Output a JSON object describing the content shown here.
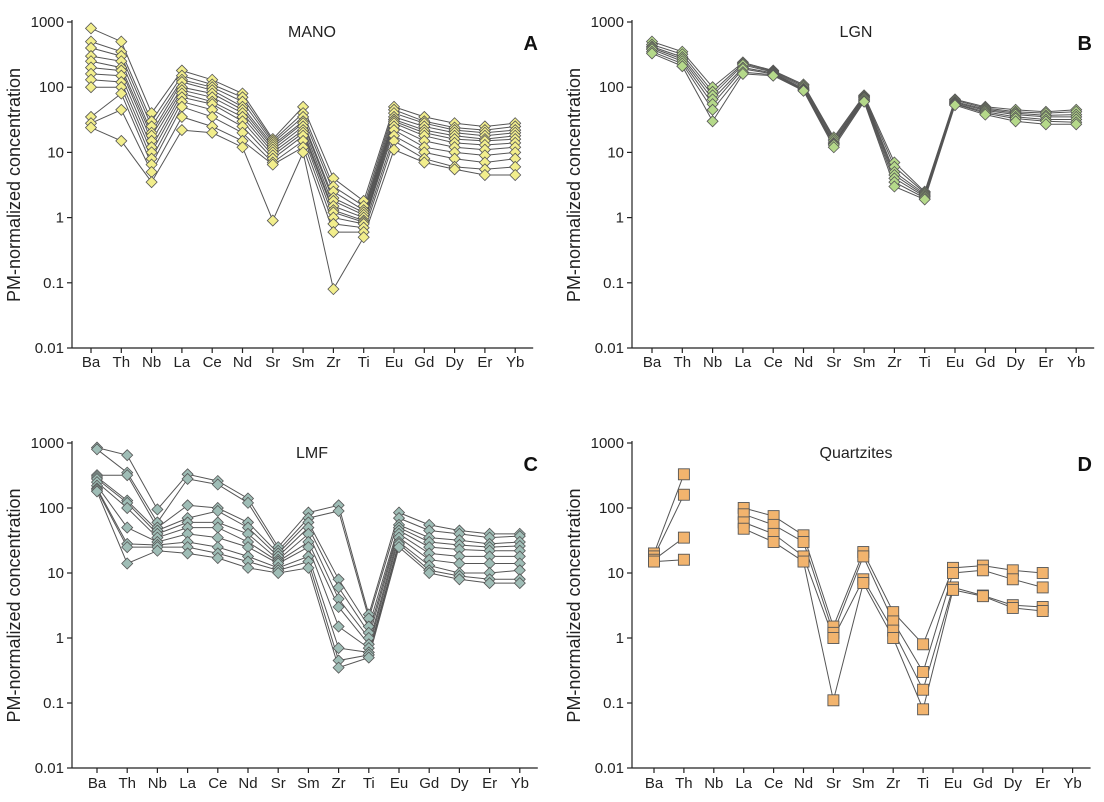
{
  "figure": {
    "element_list": [
      "Ba",
      "Th",
      "Nb",
      "La",
      "Ce",
      "Nd",
      "Sr",
      "Sm",
      "Zr",
      "Ti",
      "Eu",
      "Gd",
      "Dy",
      "Er",
      "Yb"
    ],
    "y_tick_labels": [
      "0.01",
      "0.1",
      "1",
      "10",
      "100",
      "1000"
    ]
  },
  "chart_data": [
    {
      "type": "line",
      "panel_letter": "A",
      "title": "MANO",
      "ylabel": "PM-normalized concentration",
      "xlabel": "",
      "yscale": "log",
      "ylim": [
        0.01,
        1000
      ],
      "grid": false,
      "marker": "diamond",
      "marker_color": "#f2ee8c",
      "categories": [
        "Ba",
        "Th",
        "Nb",
        "La",
        "Ce",
        "Nd",
        "Sr",
        "Sm",
        "Zr",
        "Ti",
        "Eu",
        "Gd",
        "Dy",
        "Er",
        "Yb"
      ],
      "series": [
        {
          "values": [
            800,
            500,
            40,
            180,
            130,
            80,
            16,
            50,
            4,
            1.8,
            50,
            35,
            28,
            25,
            28
          ]
        },
        {
          "values": [
            500,
            350,
            30,
            150,
            110,
            70,
            15,
            40,
            3,
            1.5,
            45,
            30,
            24,
            22,
            25
          ]
        },
        {
          "values": [
            400,
            300,
            25,
            130,
            100,
            60,
            14,
            35,
            2.5,
            1.3,
            40,
            28,
            22,
            20,
            22
          ]
        },
        {
          "values": [
            300,
            250,
            20,
            120,
            90,
            50,
            13,
            30,
            2,
            1.2,
            35,
            25,
            20,
            18,
            20
          ]
        },
        {
          "values": [
            250,
            200,
            18,
            100,
            80,
            45,
            12,
            28,
            1.8,
            1.1,
            32,
            22,
            18,
            16,
            18
          ]
        },
        {
          "values": [
            200,
            180,
            15,
            90,
            70,
            40,
            11,
            25,
            1.5,
            1,
            30,
            20,
            16,
            15,
            16
          ]
        },
        {
          "values": [
            160,
            150,
            12,
            80,
            60,
            35,
            10,
            22,
            1.3,
            0.9,
            28,
            18,
            14,
            13,
            14
          ]
        },
        {
          "values": [
            130,
            120,
            10,
            70,
            55,
            30,
            9,
            20,
            1.2,
            0.85,
            25,
            15,
            12,
            11,
            12
          ]
        },
        {
          "values": [
            100,
            100,
            8,
            60,
            45,
            25,
            8,
            18,
            1,
            0.8,
            22,
            12,
            10,
            9,
            10
          ]
        },
        {
          "values": [
            35,
            80,
            6.5,
            50,
            35,
            20,
            7,
            15,
            0.8,
            0.7,
            18,
            10,
            8,
            7,
            8
          ]
        },
        {
          "values": [
            28,
            45,
            5,
            35,
            25,
            15,
            6.5,
            12,
            0.6,
            0.6,
            15,
            8,
            6,
            5.5,
            6
          ]
        },
        {
          "values": [
            24,
            15,
            3.5,
            22,
            20,
            12,
            0.9,
            10,
            0.08,
            0.5,
            11,
            7,
            5.5,
            4.5,
            4.5
          ]
        }
      ]
    },
    {
      "type": "line",
      "panel_letter": "B",
      "title": "LGN",
      "ylabel": "PM-normalized concentration",
      "xlabel": "",
      "yscale": "log",
      "ylim": [
        0.01,
        1000
      ],
      "grid": false,
      "marker": "diamond",
      "marker_color": "#b5d98a",
      "categories": [
        "Ba",
        "Th",
        "Nb",
        "La",
        "Ce",
        "Nd",
        "Sr",
        "Sm",
        "Zr",
        "Ti",
        "Eu",
        "Gd",
        "Dy",
        "Er",
        "Yb"
      ],
      "series": [
        {
          "values": [
            500,
            350,
            100,
            240,
            180,
            110,
            17,
            75,
            7,
            2.5,
            65,
            50,
            45,
            42,
            45
          ]
        },
        {
          "values": [
            450,
            320,
            85,
            230,
            175,
            105,
            16,
            72,
            6,
            2.4,
            63,
            48,
            42,
            40,
            42
          ]
        },
        {
          "values": [
            420,
            290,
            75,
            220,
            170,
            100,
            15,
            70,
            5,
            2.3,
            60,
            46,
            40,
            37,
            38
          ]
        },
        {
          "values": [
            400,
            270,
            65,
            200,
            165,
            95,
            14,
            68,
            4.5,
            2.2,
            58,
            44,
            38,
            35,
            35
          ]
        },
        {
          "values": [
            380,
            250,
            55,
            190,
            160,
            92,
            13.5,
            65,
            4,
            2.1,
            56,
            42,
            35,
            32,
            32
          ]
        },
        {
          "values": [
            350,
            230,
            45,
            170,
            155,
            90,
            13,
            62,
            3.5,
            2,
            55,
            40,
            33,
            30,
            29
          ]
        },
        {
          "values": [
            330,
            210,
            30,
            160,
            150,
            88,
            12,
            60,
            3,
            1.9,
            53,
            38,
            30,
            27,
            27
          ]
        }
      ]
    },
    {
      "type": "line",
      "panel_letter": "C",
      "title": "LMF",
      "ylabel": "PM-normalized concentration",
      "xlabel": "",
      "yscale": "log",
      "ylim": [
        0.01,
        1000
      ],
      "grid": false,
      "marker": "diamond",
      "marker_color": "#9fbdb6",
      "categories": [
        "Ba",
        "Th",
        "Nb",
        "La",
        "Ce",
        "Nd",
        "Sr",
        "Sm",
        "Zr",
        "Ti",
        "Eu",
        "Gd",
        "Dy",
        "Er",
        "Yb"
      ],
      "series": [
        {
          "values": [
            850,
            650,
            95,
            330,
            260,
            140,
            25,
            85,
            110,
            2.3,
            85,
            55,
            45,
            40,
            40
          ]
        },
        {
          "values": [
            800,
            350,
            60,
            280,
            230,
            120,
            22,
            70,
            90,
            2,
            70,
            45,
            40,
            35,
            37
          ]
        },
        {
          "values": [
            320,
            320,
            50,
            110,
            100,
            60,
            20,
            60,
            8,
            1.5,
            55,
            35,
            32,
            28,
            30
          ]
        },
        {
          "values": [
            300,
            130,
            45,
            70,
            90,
            50,
            18,
            50,
            6,
            1.2,
            50,
            30,
            27,
            25,
            26
          ]
        },
        {
          "values": [
            280,
            120,
            40,
            60,
            60,
            40,
            16,
            40,
            4,
            1,
            45,
            25,
            23,
            22,
            22
          ]
        },
        {
          "values": [
            250,
            100,
            35,
            50,
            50,
            30,
            15,
            30,
            3,
            0.8,
            40,
            20,
            18,
            18,
            18
          ]
        },
        {
          "values": [
            220,
            50,
            30,
            40,
            35,
            25,
            14,
            25,
            1.5,
            0.7,
            35,
            16,
            14,
            14,
            14
          ]
        },
        {
          "values": [
            200,
            28,
            27,
            30,
            25,
            18,
            12,
            18,
            0.7,
            0.6,
            30,
            13,
            10,
            10,
            11
          ]
        },
        {
          "values": [
            190,
            25,
            25,
            25,
            20,
            15,
            11,
            15,
            0.45,
            0.55,
            28,
            11,
            9,
            8,
            8
          ]
        },
        {
          "values": [
            180,
            14,
            22,
            20,
            17,
            12,
            10,
            12,
            0.35,
            0.5,
            25,
            10,
            8,
            7,
            7
          ]
        }
      ]
    },
    {
      "type": "line",
      "panel_letter": "D",
      "title": "Quartzites",
      "ylabel": "PM-normalized concentration",
      "xlabel": "",
      "yscale": "log",
      "ylim": [
        0.01,
        1000
      ],
      "grid": false,
      "marker": "square",
      "marker_color": "#f2b46e",
      "categories": [
        "Ba",
        "Th",
        "Nb",
        "La",
        "Ce",
        "Nd",
        "Sr",
        "Sm",
        "Zr",
        "Ti",
        "Eu",
        "Gd",
        "Dy",
        "Er",
        "Yb"
      ],
      "series": [
        {
          "segments": [
            [
              [
                "Ba",
                20
              ],
              [
                "Th",
                330
              ]
            ],
            [
              [
                "La",
                100
              ],
              [
                "Ce",
                75
              ],
              [
                "Nd",
                38
              ],
              [
                "Sr",
                1.5
              ],
              [
                "Sm",
                21
              ],
              [
                "Zr",
                2.5
              ],
              [
                "Ti",
                0.8
              ],
              [
                "Eu",
                12
              ],
              [
                "Gd",
                13
              ],
              [
                "Dy",
                11
              ],
              [
                "Er",
                10
              ]
            ]
          ]
        },
        {
          "segments": [
            [
              [
                "Ba",
                18
              ],
              [
                "Th",
                160
              ]
            ],
            [
              [
                "La",
                80
              ],
              [
                "Ce",
                55
              ],
              [
                "Nd",
                30
              ],
              [
                "Sr",
                1.2
              ],
              [
                "Sm",
                18
              ],
              [
                "Zr",
                1.8
              ],
              [
                "Ti",
                0.3
              ],
              [
                "Eu",
                10
              ],
              [
                "Gd",
                11
              ],
              [
                "Dy",
                8
              ],
              [
                "Er",
                6
              ]
            ]
          ]
        },
        {
          "segments": [
            [
              [
                "Ba",
                16
              ],
              [
                "Th",
                35
              ]
            ],
            [
              [
                "La",
                60
              ],
              [
                "Ce",
                40
              ],
              [
                "Nd",
                18
              ],
              [
                "Sr",
                1
              ],
              [
                "Sm",
                8
              ],
              [
                "Zr",
                1.3
              ],
              [
                "Ti",
                0.16
              ],
              [
                "Eu",
                6
              ],
              [
                "Gd",
                4.5
              ],
              [
                "Dy",
                3.2
              ],
              [
                "Er",
                3
              ]
            ]
          ]
        },
        {
          "segments": [
            [
              [
                "Ba",
                15
              ],
              [
                "Th",
                16
              ]
            ],
            [
              [
                "La",
                48
              ],
              [
                "Ce",
                30
              ],
              [
                "Nd",
                15
              ],
              [
                "Sr",
                0.11
              ],
              [
                "Sm",
                7
              ],
              [
                "Zr",
                1
              ],
              [
                "Ti",
                0.08
              ],
              [
                "Eu",
                5.5
              ],
              [
                "Gd",
                4.4
              ],
              [
                "Dy",
                2.9
              ],
              [
                "Er",
                2.6
              ]
            ]
          ]
        }
      ]
    }
  ]
}
